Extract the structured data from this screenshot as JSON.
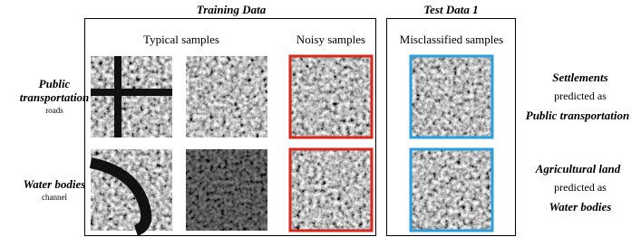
{
  "training_data": {
    "title": "Training Data",
    "columns": [
      "Typical samples",
      "Noisy samples"
    ]
  },
  "test_data": {
    "title": "Test Data 1",
    "columns": [
      "Misclassified samples"
    ]
  },
  "rows": [
    {
      "label": "Public transportation",
      "sublabel": "roads",
      "true_class": "Settlements",
      "relation": "predicted as",
      "predicted_class": "Public transportation"
    },
    {
      "label": "Water bodies",
      "sublabel": "channel",
      "true_class": "Agricultural land",
      "relation": "predicted as",
      "predicted_class": "Water bodies"
    }
  ]
}
